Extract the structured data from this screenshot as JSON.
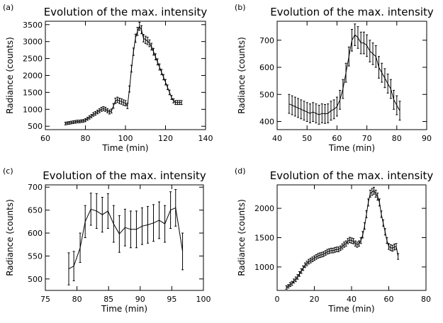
{
  "chart_data": [
    {
      "type": "line",
      "panel_label": "(a)",
      "title": "Evolution of the max. intensity",
      "xlabel": "Time (min)",
      "ylabel": "Radiance (counts)",
      "xlim": [
        60,
        140
      ],
      "ylim": [
        400,
        3600
      ],
      "xticks": [
        60,
        80,
        100,
        120,
        140
      ],
      "yticks": [
        500,
        1000,
        1500,
        2000,
        2500,
        3000,
        3500
      ],
      "error_bars": true,
      "series": [
        {
          "x": [
            70,
            71,
            72,
            73,
            74,
            75,
            76,
            77,
            78,
            79,
            80,
            81,
            82,
            83,
            84,
            85,
            86,
            87,
            88,
            89,
            90,
            91,
            92,
            93,
            94,
            95,
            96,
            97,
            98,
            99,
            100,
            101,
            102,
            103,
            104,
            105,
            106,
            107,
            108,
            109,
            110,
            111,
            112,
            113,
            114,
            115,
            116,
            117,
            118,
            119,
            120,
            121,
            122,
            123,
            124,
            125,
            126,
            127,
            128
          ],
          "y": [
            580,
            590,
            600,
            610,
            620,
            630,
            640,
            640,
            650,
            660,
            680,
            720,
            760,
            800,
            850,
            880,
            920,
            960,
            1000,
            1020,
            1000,
            960,
            920,
            950,
            1100,
            1250,
            1280,
            1250,
            1230,
            1200,
            1180,
            1100,
            1600,
            2200,
            2700,
            3100,
            3300,
            3450,
            3350,
            3100,
            3050,
            3020,
            2950,
            2850,
            2700,
            2550,
            2400,
            2250,
            2100,
            1950,
            1800,
            1650,
            1500,
            1350,
            1250,
            1200,
            1200,
            1200,
            1200
          ],
          "err": [
            40,
            40,
            40,
            40,
            40,
            40,
            40,
            40,
            40,
            40,
            45,
            45,
            50,
            50,
            55,
            55,
            55,
            60,
            60,
            60,
            60,
            60,
            60,
            60,
            70,
            80,
            80,
            80,
            80,
            80,
            80,
            80,
            90,
            100,
            110,
            120,
            120,
            120,
            120,
            110,
            110,
            110,
            100,
            100,
            100,
            90,
            90,
            90,
            80,
            80,
            80,
            70,
            70,
            60,
            60,
            60,
            60,
            60,
            60
          ]
        }
      ]
    },
    {
      "type": "line",
      "panel_label": "(b)",
      "title": "Evolution of the max. intensity",
      "xlabel": "Time (min)",
      "ylabel": "Radiance (counts)",
      "xlim": [
        40,
        90
      ],
      "ylim": [
        370,
        770
      ],
      "xticks": [
        40,
        50,
        60,
        70,
        80,
        90
      ],
      "yticks": [
        400,
        500,
        600,
        700
      ],
      "error_bars": true,
      "series": [
        {
          "x": [
            44,
            45,
            46,
            47,
            48,
            49,
            50,
            51,
            52,
            53,
            54,
            55,
            56,
            57,
            58,
            59,
            60,
            61,
            62,
            63,
            64,
            65,
            66,
            67,
            68,
            69,
            70,
            71,
            72,
            73,
            74,
            75,
            76,
            77,
            78,
            79,
            80,
            81
          ],
          "y": [
            465,
            460,
            455,
            450,
            445,
            440,
            435,
            430,
            435,
            430,
            425,
            430,
            428,
            430,
            440,
            445,
            455,
            480,
            520,
            580,
            640,
            700,
            720,
            710,
            690,
            690,
            680,
            660,
            650,
            640,
            600,
            580,
            560,
            540,
            520,
            480,
            460,
            440
          ],
          "err": [
            35,
            35,
            35,
            35,
            35,
            35,
            35,
            35,
            35,
            35,
            35,
            35,
            35,
            35,
            35,
            35,
            35,
            35,
            35,
            35,
            35,
            40,
            40,
            40,
            40,
            40,
            40,
            40,
            40,
            40,
            40,
            35,
            35,
            35,
            35,
            35,
            35,
            35
          ]
        }
      ]
    },
    {
      "type": "line",
      "panel_label": "(c)",
      "title": "Evolution of the max. intensity",
      "xlabel": "Time (min)",
      "ylabel": "Radiance (counts)",
      "xlim": [
        75,
        100
      ],
      "ylim": [
        475,
        705
      ],
      "xticks": [
        75,
        80,
        85,
        90,
        95,
        100
      ],
      "yticks": [
        500,
        550,
        600,
        650,
        700
      ],
      "error_bars": true,
      "series": [
        {
          "x": [
            78.7,
            79.5,
            80.5,
            81.3,
            82.2,
            83.1,
            84,
            84.9,
            85.8,
            86.7,
            87.6,
            88.5,
            89.4,
            90.3,
            91.2,
            92.1,
            93,
            93.9,
            94.8,
            95.6,
            96.7
          ],
          "y": [
            522,
            528,
            568,
            625,
            652,
            648,
            640,
            648,
            620,
            598,
            612,
            608,
            608,
            615,
            618,
            622,
            628,
            620,
            650,
            655,
            560
          ],
          "err": [
            35,
            32,
            32,
            35,
            35,
            38,
            38,
            38,
            40,
            40,
            40,
            40,
            40,
            40,
            40,
            40,
            40,
            40,
            40,
            40,
            40
          ]
        }
      ]
    },
    {
      "type": "line",
      "panel_label": "(d)",
      "title": "Evolution of the max. intensity",
      "xlabel": "Time (min)",
      "ylabel": "Radiance (counts)",
      "xlim": [
        0,
        80
      ],
      "ylim": [
        600,
        2400
      ],
      "xticks": [
        0,
        20,
        40,
        60,
        80
      ],
      "yticks": [
        1000,
        1500,
        2000
      ],
      "error_bars": true,
      "series": [
        {
          "x": [
            5,
            6,
            7,
            8,
            9,
            10,
            11,
            12,
            13,
            14,
            15,
            16,
            17,
            18,
            19,
            20,
            21,
            22,
            23,
            24,
            25,
            26,
            27,
            28,
            29,
            30,
            31,
            32,
            33,
            34,
            35,
            36,
            37,
            38,
            39,
            40,
            41,
            42,
            43,
            44,
            45,
            46,
            47,
            48,
            49,
            50,
            51,
            52,
            53,
            54,
            55,
            56,
            57,
            58,
            59,
            60,
            61,
            62,
            63,
            64,
            65
          ],
          "y": [
            650,
            670,
            700,
            720,
            760,
            790,
            830,
            880,
            930,
            980,
            1030,
            1060,
            1090,
            1110,
            1130,
            1150,
            1170,
            1190,
            1200,
            1210,
            1220,
            1240,
            1260,
            1270,
            1280,
            1280,
            1290,
            1300,
            1300,
            1320,
            1350,
            1380,
            1400,
            1440,
            1460,
            1450,
            1440,
            1400,
            1380,
            1400,
            1450,
            1550,
            1700,
            1900,
            2100,
            2250,
            2280,
            2300,
            2250,
            2200,
            2100,
            1900,
            1750,
            1600,
            1450,
            1350,
            1330,
            1320,
            1340,
            1350,
            1180
          ],
          "err": [
            30,
            30,
            35,
            35,
            35,
            40,
            40,
            40,
            40,
            40,
            40,
            40,
            40,
            40,
            40,
            40,
            40,
            40,
            40,
            40,
            40,
            40,
            40,
            40,
            40,
            40,
            40,
            40,
            40,
            40,
            45,
            45,
            45,
            45,
            45,
            45,
            45,
            45,
            45,
            45,
            50,
            55,
            55,
            60,
            60,
            60,
            60,
            60,
            60,
            60,
            60,
            55,
            55,
            55,
            50,
            50,
            50,
            50,
            50,
            50,
            50
          ]
        }
      ]
    }
  ]
}
